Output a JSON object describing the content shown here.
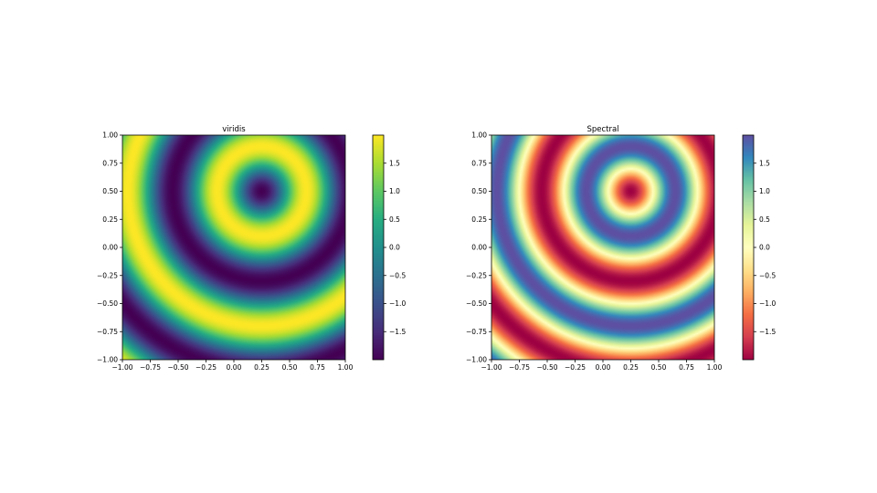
{
  "chart_data": [
    {
      "type": "heatmap",
      "title": "viridis",
      "colormap": "viridis",
      "xlim": [
        -1.0,
        1.0
      ],
      "ylim": [
        -1.0,
        1.0
      ],
      "xticks": [
        "−1.00",
        "−0.75",
        "−0.50",
        "−0.25",
        "0.00",
        "0.25",
        "0.50",
        "0.75",
        "1.00"
      ],
      "yticks": [
        "−1.00",
        "−0.75",
        "−0.50",
        "−0.25",
        "0.00",
        "0.25",
        "0.50",
        "0.75",
        "1.00"
      ],
      "field": {
        "center": [
          0.25,
          0.5
        ],
        "amplitude": 2.0,
        "wavelength": 0.8,
        "min": -2.0,
        "max": 2.0
      },
      "colorbar": {
        "range": [
          -2.0,
          2.0
        ],
        "ticks": [
          "−1.5",
          "−1.0",
          "−0.5",
          "0.0",
          "0.5",
          "1.0",
          "1.5"
        ]
      },
      "grid": false
    },
    {
      "type": "heatmap",
      "title": "Spectral",
      "colormap": "Spectral",
      "xlim": [
        -1.0,
        1.0
      ],
      "ylim": [
        -1.0,
        1.0
      ],
      "xticks": [
        "−1.00",
        "−0.75",
        "−0.50",
        "−0.25",
        "0.00",
        "0.25",
        "0.50",
        "0.75",
        "1.00"
      ],
      "yticks": [
        "−1.00",
        "−0.75",
        "−0.50",
        "−0.25",
        "0.00",
        "0.25",
        "0.50",
        "0.75",
        "1.00"
      ],
      "field": {
        "center": [
          0.25,
          0.5
        ],
        "amplitude": 2.0,
        "wavelength": 0.8,
        "min": -2.0,
        "max": 2.0
      },
      "colorbar": {
        "range": [
          -2.0,
          2.0
        ],
        "ticks": [
          "−1.5",
          "−1.0",
          "−0.5",
          "0.0",
          "0.5",
          "1.0",
          "1.5"
        ]
      },
      "grid": false
    }
  ]
}
